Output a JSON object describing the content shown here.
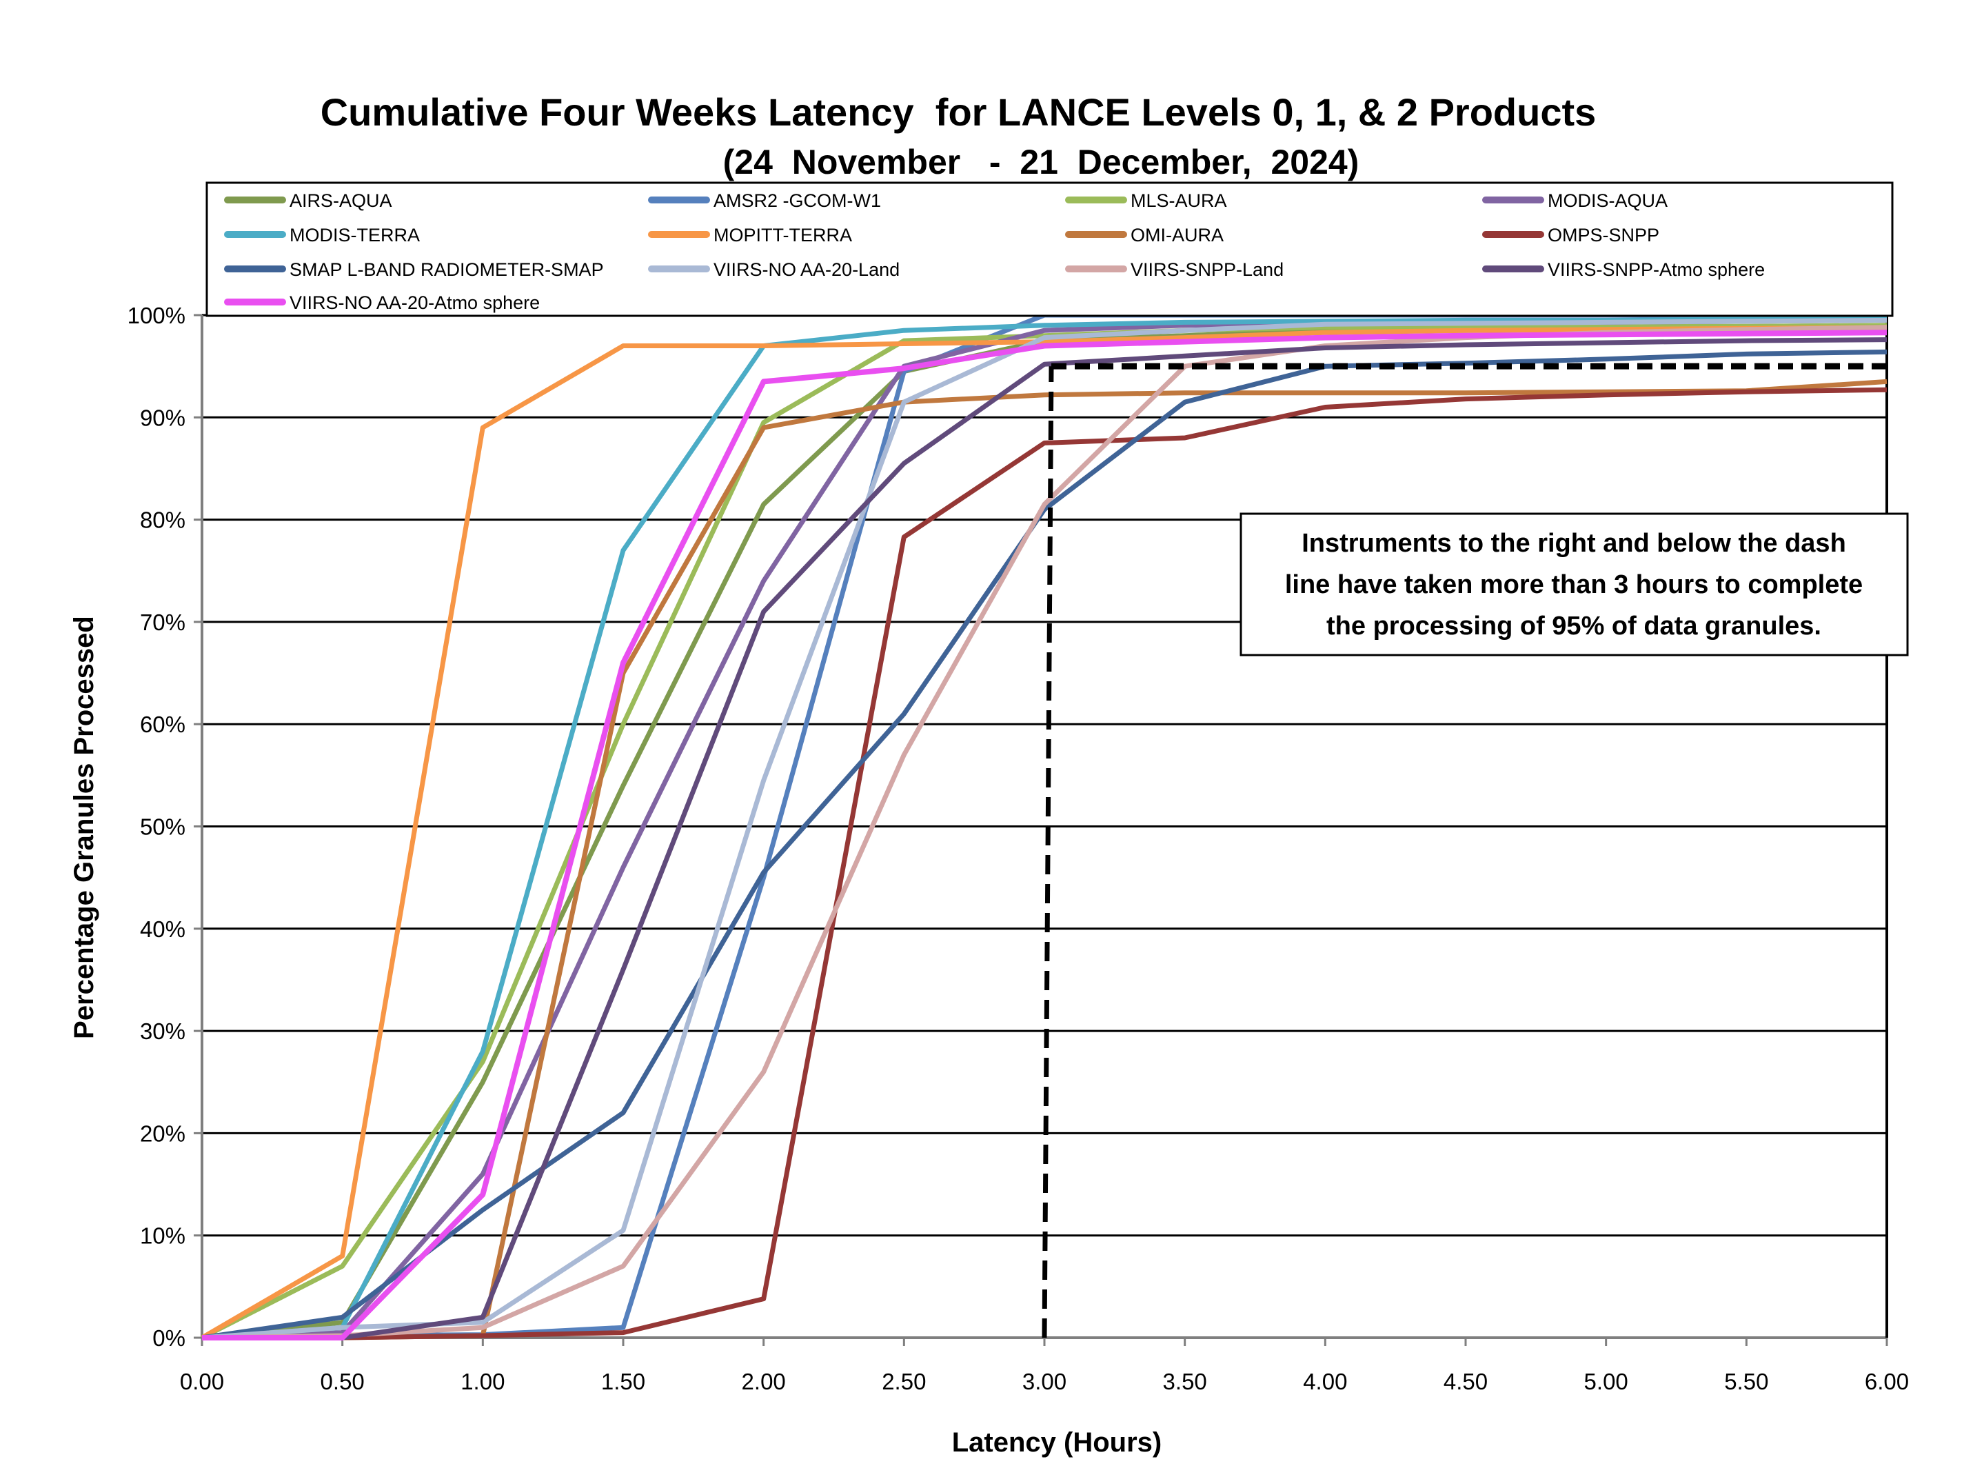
{
  "chart_data": {
    "type": "line",
    "title": "Cumulative Four Weeks Latency  for LANCE Levels 0, 1, & 2 Products",
    "subtitle": "(24  November   -  21  December,  2024)",
    "xlabel": "Latency (Hours)",
    "ylabel": "Percentage Granules Processed",
    "xlim": [
      0,
      6
    ],
    "ylim": [
      0,
      100
    ],
    "grid": true,
    "legend_position": "top",
    "x": [
      0,
      0.5,
      1,
      1.5,
      2,
      2.5,
      3,
      3.5,
      4,
      4.5,
      5,
      5.5,
      6
    ],
    "x_tick_labels": [
      "0.00",
      "0.50",
      "1.00",
      "1.50",
      "2.00",
      "2.50",
      "3.00",
      "3.50",
      "4.00",
      "4.50",
      "5.00",
      "5.50",
      "6.00"
    ],
    "y_tick_labels": [
      "0%",
      "10%",
      "20%",
      "30%",
      "40%",
      "50%",
      "60%",
      "70%",
      "80%",
      "90%",
      "100%"
    ],
    "series": [
      {
        "name": "AIRS-AQUA",
        "color": "#7f9a4e",
        "values": [
          0,
          1.5,
          25,
          54,
          81.5,
          94.5,
          97.5,
          98,
          98.5,
          98.5,
          98.6,
          98.7,
          98.8
        ]
      },
      {
        "name": "AMSR2 -GCOM-W1",
        "color": "#5580bd",
        "values": [
          0,
          0.2,
          0.3,
          1,
          45,
          94.5,
          100,
          100,
          100,
          100,
          100,
          100,
          100
        ]
      },
      {
        "name": "MLS-AURA",
        "color": "#9bbb59",
        "values": [
          0,
          7,
          27,
          60,
          89.5,
          97.5,
          98,
          98.5,
          98.8,
          98.8,
          98.9,
          98.9,
          99
        ]
      },
      {
        "name": "MODIS-AQUA",
        "color": "#8064a2",
        "values": [
          0,
          0.5,
          16,
          46,
          74,
          95,
          98.5,
          99,
          99.2,
          99.3,
          99.3,
          99.4,
          99.5
        ]
      },
      {
        "name": "MODIS-TERRA",
        "color": "#4bacc6",
        "values": [
          0,
          1,
          28,
          77,
          97,
          98.5,
          99,
          99.3,
          99.4,
          99.5,
          99.5,
          99.6,
          99.6
        ]
      },
      {
        "name": "MOPITT-TERRA",
        "color": "#f79646",
        "values": [
          0,
          8,
          89,
          97,
          97,
          97.2,
          97.4,
          97.8,
          98.3,
          98.5,
          98.6,
          98.7,
          98.8
        ]
      },
      {
        "name": "OMI-AURA",
        "color": "#c0783e",
        "values": [
          0,
          0,
          0.2,
          65,
          89,
          91.5,
          92.2,
          92.4,
          92.4,
          92.4,
          92.5,
          92.6,
          93.5
        ]
      },
      {
        "name": "OMPS-SNPP",
        "color": "#953735",
        "values": [
          0,
          0,
          0.2,
          0.5,
          3.8,
          78.3,
          87.5,
          88,
          91,
          91.8,
          92.2,
          92.5,
          92.7
        ]
      },
      {
        "name": "SMAP L-BAND RADIOMETER-SMAP",
        "color": "#3f6396",
        "values": [
          0,
          2,
          12.5,
          22,
          45.5,
          61,
          81,
          91.5,
          95,
          95.3,
          95.7,
          96.2,
          96.4
        ]
      },
      {
        "name": "VIIRS-NOAA-20-Land",
        "color": "#a9b9d5",
        "values": [
          0,
          1,
          1.5,
          10.5,
          54.5,
          91.5,
          97.8,
          98.5,
          99.1,
          99.2,
          99.3,
          99.4,
          99.5
        ]
      },
      {
        "name": "VIIRS-SNPP-Land",
        "color": "#d3a6a5",
        "values": [
          0,
          0.2,
          1,
          7,
          26,
          57,
          81.5,
          95,
          97,
          97.8,
          98.3,
          98.6,
          98.8
        ]
      },
      {
        "name": "VIIRS-SNPP-Atmosphere",
        "color": "#604a7b",
        "values": [
          0,
          0,
          2,
          36,
          71,
          85.5,
          95.2,
          96,
          96.8,
          97.1,
          97.3,
          97.5,
          97.6
        ]
      },
      {
        "name": "VIIRS-NOAA-20-Atmosphere",
        "color": "#e94ff0",
        "values": [
          0,
          0,
          14,
          66,
          93.5,
          94.8,
          97,
          97.4,
          97.8,
          98,
          98.1,
          98.2,
          98.3
        ]
      }
    ],
    "legend_labels": {
      "AIRS-AQUA": "AIRS-AQUA",
      "AMSR2 -GCOM-W1": "AMSR2 -GCOM-W1",
      "MLS-AURA": "MLS-AURA",
      "MODIS-AQUA": "MODIS-AQUA",
      "MODIS-TERRA": "MODIS-TERRA",
      "MOPITT-TERRA": "MOPITT-TERRA",
      "OMI-AURA": "OMI-AURA",
      "OMPS-SNPP": "OMPS-SNPP",
      "SMAP L-BAND RADIOMETER-SMAP": "SMAP L-BAND RADIOMETER-SMAP",
      "VIIRS-NOAA-20-Land": "VIIRS-NO AA-20-Land",
      "VIIRS-SNPP-Land": "VIIRS-SNPP-Land",
      "VIIRS-SNPP-Atmosphere": "VIIRS-SNPP-Atmo sphere",
      "VIIRS-NOAA-20-Atmosphere": "VIIRS-NO AA-20-Atmo sphere"
    },
    "threshold": {
      "x": 3.0,
      "y": 95,
      "style": "dashed"
    },
    "annotation": {
      "lines": [
        "Instruments to the right and below the dash",
        "line have taken more than 3 hours to complete",
        "the processing of 95% of data granules."
      ]
    }
  }
}
